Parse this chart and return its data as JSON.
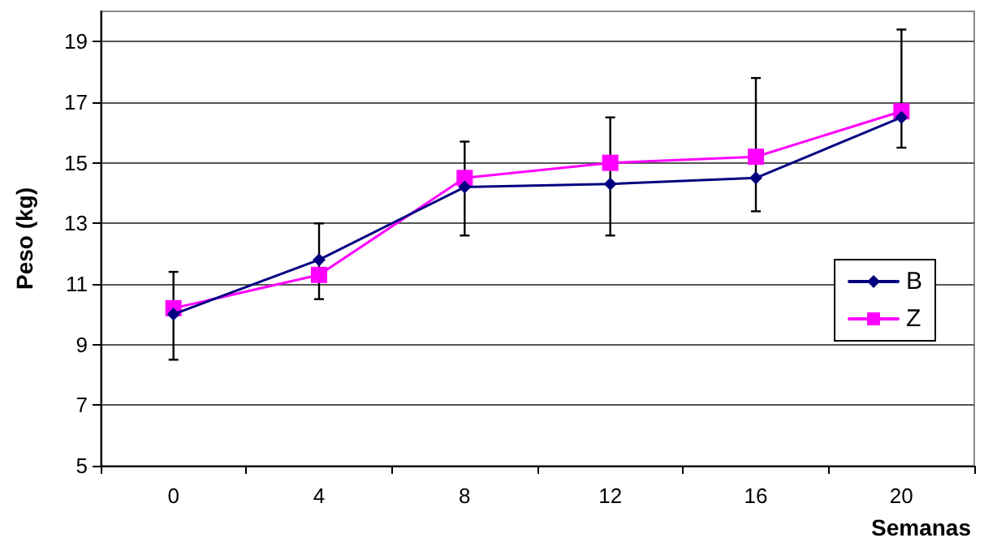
{
  "chart_data": {
    "type": "line",
    "xlabel": "Semanas",
    "ylabel": "Peso (kg)",
    "categories": [
      "0",
      "4",
      "8",
      "12",
      "16",
      "20"
    ],
    "series": [
      {
        "name": "B",
        "color": "#000080",
        "marker": "diamond",
        "values": [
          10.0,
          11.8,
          14.2,
          14.3,
          14.5,
          16.5
        ],
        "errors": [
          [
            8.5,
            11.4
          ],
          [
            10.5,
            13.0
          ],
          [
            12.6,
            15.7
          ],
          [
            12.6,
            16.5
          ],
          [
            13.4,
            17.8
          ],
          [
            15.5,
            19.4
          ]
        ]
      },
      {
        "name": "Z",
        "color": "#ff00ff",
        "marker": "square",
        "values": [
          10.2,
          11.3,
          14.5,
          15.0,
          15.2,
          16.7
        ]
      }
    ],
    "ylim": [
      5,
      20
    ],
    "yticks": [
      5,
      7,
      9,
      11,
      13,
      15,
      17,
      19
    ],
    "grid": "y",
    "legend": "right"
  }
}
